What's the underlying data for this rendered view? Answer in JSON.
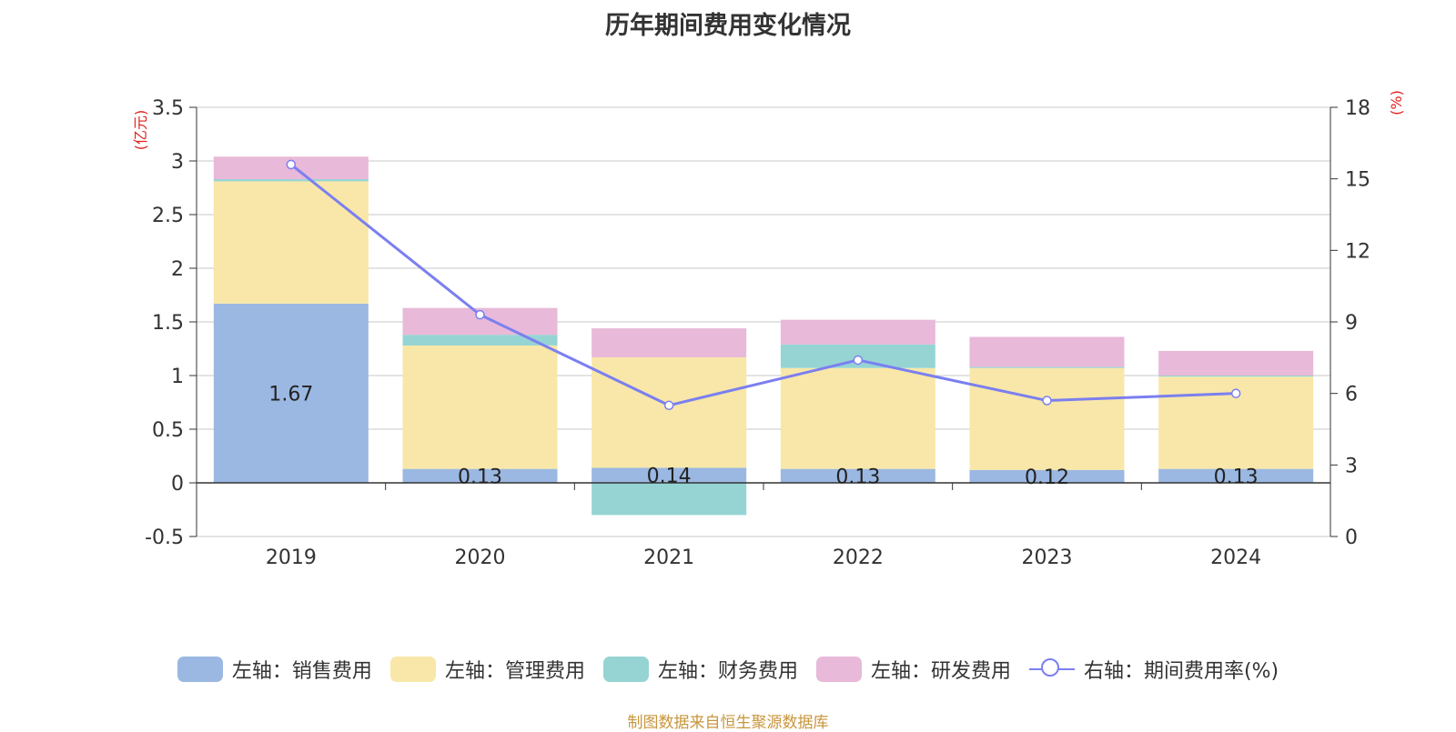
{
  "title": "历年期间费用变化情况",
  "source": "制图数据来自恒生聚源数据库",
  "colors": {
    "sales": "#9bb8e2",
    "admin": "#f8e7a8",
    "finance": "#96d4d4",
    "rnd": "#e8b9d8",
    "rate_line": "#7b7ff0",
    "axis_unit": "#e0201e"
  },
  "chart_data": {
    "type": "bar",
    "stacked": true,
    "categories": [
      "2019",
      "2020",
      "2021",
      "2022",
      "2023",
      "2024"
    ],
    "y_left": {
      "unit": "(亿元)",
      "ylim": [
        -0.5,
        3.5
      ],
      "ticks": [
        "-0.5",
        "0",
        "0.5",
        "1",
        "1.5",
        "2",
        "2.5",
        "3",
        "3.5"
      ]
    },
    "y_right": {
      "unit": "(%)",
      "ylim": [
        0,
        18
      ],
      "ticks": [
        "0",
        "3",
        "6",
        "9",
        "12",
        "15",
        "18"
      ]
    },
    "grid": true,
    "legend_position": "bottom",
    "series": [
      {
        "name": "左轴：销售费用",
        "key": "sales",
        "values": [
          1.67,
          0.13,
          0.14,
          0.13,
          0.12,
          0.13
        ],
        "labels": [
          "1.67",
          "0.13",
          "0.14",
          "0.13",
          "0.12",
          "0.13"
        ]
      },
      {
        "name": "左轴：管理费用",
        "key": "admin",
        "values": [
          1.14,
          1.15,
          1.03,
          0.94,
          0.95,
          0.86
        ]
      },
      {
        "name": "左轴：财务费用",
        "key": "finance",
        "values": [
          0.02,
          0.1,
          -0.3,
          0.22,
          0.01,
          0.01
        ]
      },
      {
        "name": "左轴：研发费用",
        "key": "rnd",
        "values": [
          0.21,
          0.25,
          0.27,
          0.23,
          0.28,
          0.23
        ]
      }
    ],
    "line_series": {
      "name": "右轴：期间费用率(%)",
      "axis": "right",
      "values": [
        15.6,
        9.3,
        5.5,
        7.4,
        5.7,
        6.0
      ]
    }
  }
}
